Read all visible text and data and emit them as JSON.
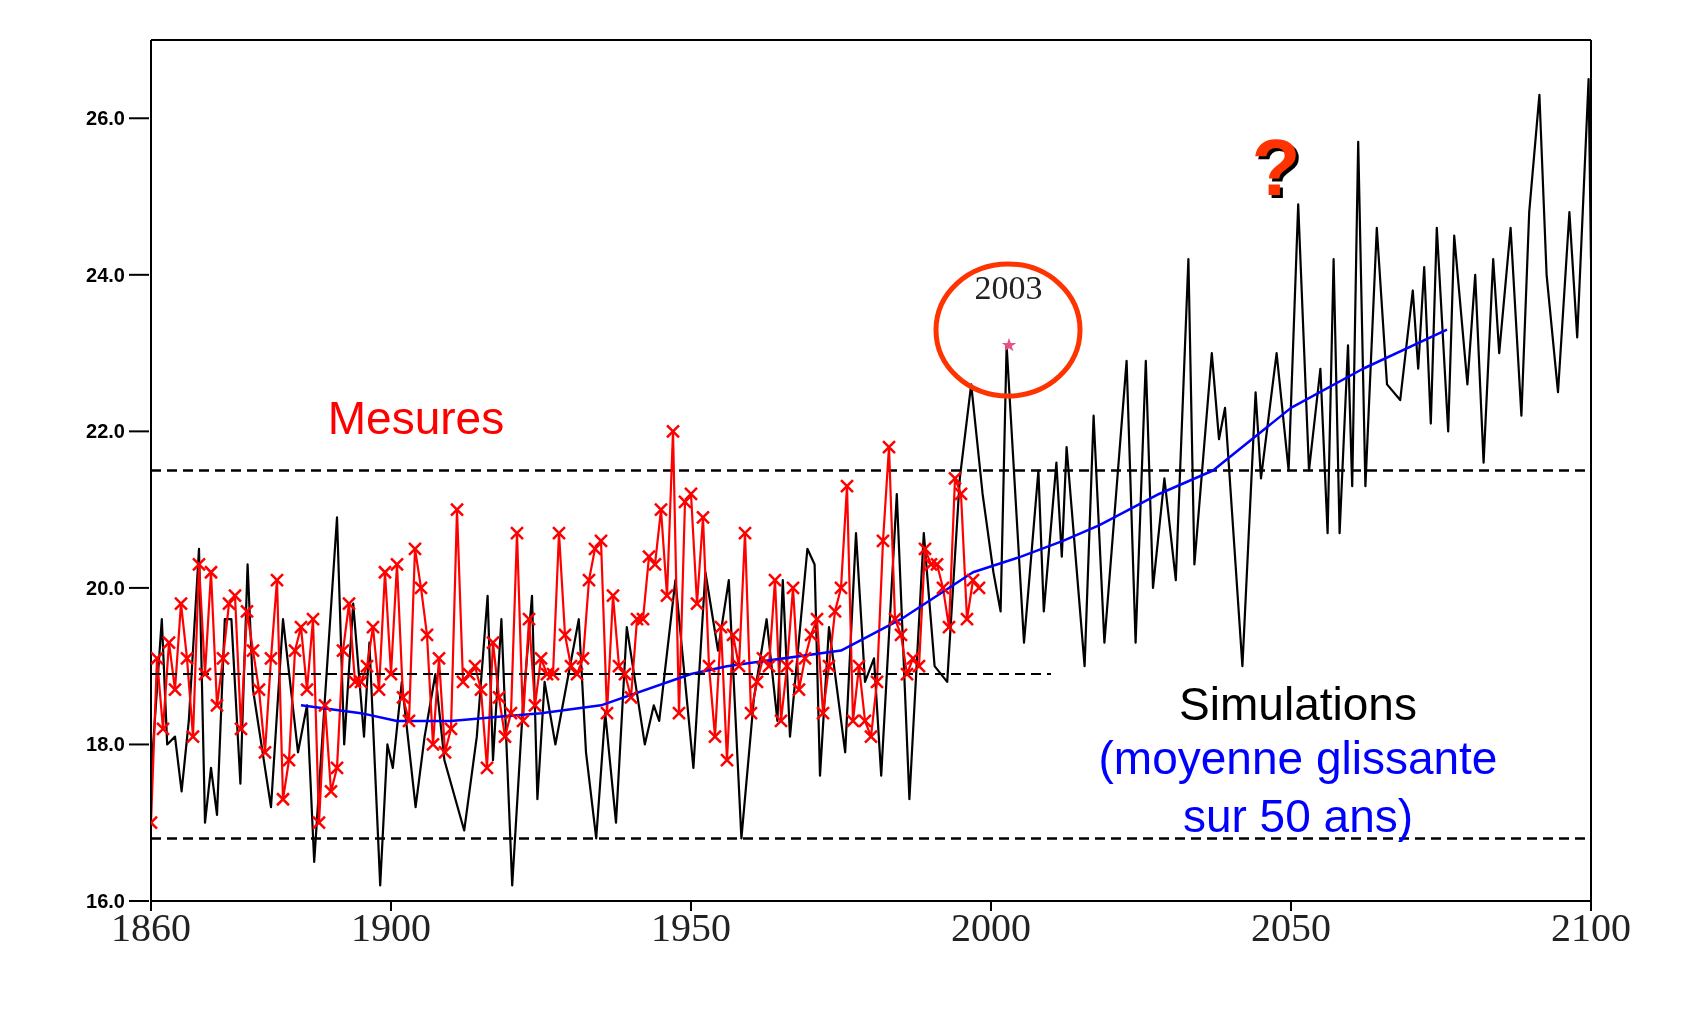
{
  "chart_data": {
    "type": "line",
    "xlim": [
      1860,
      2100
    ],
    "ylim": [
      16,
      27
    ],
    "xticks": [
      1860,
      1900,
      1950,
      2000,
      2050,
      2100
    ],
    "yticks": [
      {
        "value": 16,
        "label": "16.0"
      },
      {
        "value": 18,
        "label": "18.0"
      },
      {
        "value": 20,
        "label": "20.0"
      },
      {
        "value": 22,
        "label": "22.0"
      },
      {
        "value": 24,
        "label": "24.0"
      },
      {
        "value": 26,
        "label": "26.0"
      }
    ],
    "legend": false,
    "grid": false,
    "ref_lines": [
      {
        "axis": "y",
        "value": 21.5,
        "line_style": "dashed",
        "color": "#000000"
      },
      {
        "axis": "y",
        "value": 16.8,
        "line_style": "dashed",
        "color": "#000000"
      }
    ],
    "annotations": [
      {
        "text": "2003",
        "x": 2003,
        "y": 23.1
      },
      "?"
    ],
    "series": [
      {
        "name": "Simulations",
        "color": "#000000",
        "marker": "none",
        "line_style": "solid",
        "x": [
          1860,
          1861.8,
          1862.7,
          1864,
          1865.1,
          1866.3,
          1868,
          1869,
          1870,
          1871,
          1872.3,
          1873.4,
          1874.9,
          1876.1,
          1877,
          1880,
          1882,
          1884.5,
          1886,
          1887.2,
          1889,
          1891,
          1892.2,
          1893.7,
          1895.5,
          1896.4,
          1898.2,
          1899.4,
          1900.3,
          1901.8,
          1904.1,
          1905.6,
          1907.4,
          1908.9,
          1912.2,
          1914.3,
          1916.1,
          1917,
          1918.4,
          1920.2,
          1922,
          1923.5,
          1924.4,
          1925.6,
          1927.4,
          1931.3,
          1932.5,
          1934.2,
          1935.7,
          1937.5,
          1939.3,
          1942.3,
          1943.8,
          1944.7,
          1947.4,
          1950.4,
          1952.4,
          1954.5,
          1956.3,
          1958.4,
          1960.5,
          1962.6,
          1964.4,
          1965.3,
          1966.5,
          1969.4,
          1970.6,
          1971.5,
          1973,
          1975.7,
          1977.5,
          1979,
          1980.5,
          1981.7,
          1984.3,
          1986.4,
          1988.8,
          1990.6,
          1992.7,
          1994.8,
          1996.7,
          1998.6,
          2000.4,
          2001.6,
          2002.6,
          2005.5,
          2007.9,
          2008.8,
          2010.9,
          2011.8,
          2012.6,
          2015.6,
          2017.1,
          2018.9,
          2022.6,
          2024.1,
          2025.8,
          2027,
          2028.9,
          2030.8,
          2032.9,
          2033.9,
          2036.8,
          2038,
          2039,
          2041.9,
          2044.1,
          2045,
          2047.6,
          2049.6,
          2051.2,
          2053,
          2054.9,
          2056.1,
          2057.1,
          2058.1,
          2059.5,
          2060.2,
          2061.2,
          2062.4,
          2064.3,
          2066,
          2068.2,
          2070.3,
          2071.2,
          2072.2,
          2073.3,
          2074.3,
          2076.2,
          2077.2,
          2079.4,
          2080.7,
          2082.1,
          2083.7,
          2084.7,
          2086.6,
          2088.4,
          2089.7,
          2091.4,
          2092.6,
          2094.5,
          2096.4,
          2097.7,
          2099.6,
          2100
        ],
        "values": [
          17.6,
          19.6,
          18.0,
          18.1,
          17.4,
          18.3,
          20.5,
          17.0,
          17.7,
          17.1,
          19.6,
          19.6,
          17.5,
          20.3,
          18.7,
          17.2,
          19.6,
          17.9,
          18.5,
          16.5,
          18.6,
          20.9,
          18.0,
          19.8,
          18.1,
          19.3,
          16.2,
          18.0,
          17.7,
          18.8,
          17.2,
          18.1,
          18.9,
          17.8,
          16.9,
          18.1,
          19.9,
          17.8,
          19.6,
          16.2,
          18.5,
          19.9,
          17.3,
          18.8,
          18.0,
          19.6,
          17.9,
          16.8,
          18.4,
          17.0,
          19.5,
          18.0,
          18.5,
          18.3,
          20.1,
          17.7,
          20.2,
          19.2,
          20.1,
          16.8,
          18.6,
          19.6,
          18.3,
          20.1,
          18.1,
          20.5,
          20.3,
          17.6,
          19.5,
          17.9,
          20.7,
          18.8,
          19.1,
          17.6,
          21.2,
          17.3,
          20.7,
          19.0,
          18.8,
          21.4,
          22.6,
          21.2,
          20.2,
          19.7,
          23.1,
          19.3,
          21.5,
          19.7,
          21.6,
          20.4,
          21.8,
          19.0,
          22.2,
          19.3,
          22.9,
          19.3,
          22.9,
          20.0,
          21.4,
          20.1,
          24.2,
          20.3,
          23.0,
          21.9,
          22.3,
          19.0,
          22.5,
          21.4,
          23.0,
          21.5,
          24.9,
          21.5,
          22.8,
          20.7,
          24.2,
          20.7,
          23.1,
          21.3,
          25.7,
          21.3,
          24.6,
          22.6,
          22.4,
          23.8,
          22.8,
          24.1,
          22.1,
          24.6,
          22.0,
          24.5,
          22.6,
          24.0,
          21.6,
          24.2,
          23.0,
          24.6,
          22.2,
          24.8,
          26.3,
          24.0,
          22.5,
          24.8,
          23.2,
          26.5,
          24.2
        ]
      },
      {
        "name": "Mesures",
        "color": "#ff0000",
        "marker": "cross",
        "line_style": "solid",
        "x": [
          1860,
          1861,
          1862,
          1863,
          1864,
          1865,
          1866,
          1867,
          1868,
          1869,
          1870,
          1871,
          1872,
          1873,
          1874,
          1875,
          1876,
          1877,
          1878,
          1879,
          1880,
          1881,
          1882,
          1883,
          1884,
          1885,
          1886,
          1887,
          1888,
          1889,
          1890,
          1891,
          1892,
          1893,
          1894,
          1895,
          1896,
          1897,
          1898,
          1899,
          1900,
          1901,
          1902,
          1903,
          1904,
          1905,
          1906,
          1907,
          1908,
          1909,
          1910,
          1911,
          1912,
          1913,
          1914,
          1915,
          1916,
          1917,
          1918,
          1919,
          1920,
          1921,
          1922,
          1923,
          1924,
          1925,
          1926,
          1927,
          1928,
          1929,
          1930,
          1931,
          1932,
          1933,
          1934,
          1935,
          1936,
          1937,
          1938,
          1939,
          1940,
          1941,
          1942,
          1943,
          1944,
          1945,
          1946,
          1947,
          1948,
          1949,
          1950,
          1951,
          1952,
          1953,
          1954,
          1955,
          1956,
          1957,
          1958,
          1959,
          1960,
          1961,
          1962,
          1963,
          1964,
          1965,
          1966,
          1967,
          1968,
          1969,
          1970,
          1971,
          1972,
          1973,
          1974,
          1975,
          1976,
          1977,
          1978,
          1979,
          1980,
          1981,
          1982,
          1983,
          1984,
          1985,
          1986,
          1987,
          1988,
          1989,
          1990,
          1991,
          1992,
          1993,
          1994,
          1995,
          1996,
          1997,
          1998
        ],
        "values": [
          17.0,
          19.1,
          18.2,
          19.3,
          18.7,
          19.8,
          19.1,
          18.1,
          20.3,
          18.9,
          20.2,
          18.5,
          19.1,
          19.8,
          19.9,
          18.2,
          19.7,
          19.2,
          18.7,
          17.9,
          19.1,
          20.1,
          17.3,
          17.8,
          19.2,
          19.5,
          18.7,
          19.6,
          17.0,
          18.5,
          17.4,
          17.7,
          19.2,
          19.8,
          18.8,
          18.8,
          19.0,
          19.5,
          18.7,
          20.2,
          18.9,
          20.3,
          18.6,
          18.3,
          20.5,
          20.0,
          19.4,
          18.0,
          19.1,
          17.9,
          18.2,
          21.0,
          18.8,
          18.9,
          19.0,
          18.7,
          17.7,
          19.3,
          18.6,
          18.1,
          18.4,
          20.7,
          18.3,
          19.6,
          18.5,
          19.1,
          18.9,
          18.9,
          20.7,
          19.4,
          19.0,
          18.9,
          19.1,
          20.1,
          20.5,
          20.6,
          18.4,
          19.9,
          19.0,
          18.9,
          18.6,
          19.6,
          19.6,
          20.4,
          20.3,
          21.0,
          19.9,
          22.0,
          18.4,
          21.1,
          21.2,
          19.8,
          20.9,
          19.0,
          18.1,
          19.5,
          17.8,
          19.4,
          19.0,
          20.7,
          18.4,
          18.8,
          19.1,
          19.0,
          20.1,
          18.3,
          19.0,
          20.0,
          18.7,
          19.1,
          19.4,
          19.6,
          18.4,
          19.0,
          19.7,
          20.0,
          21.3,
          18.3,
          19.0,
          18.3,
          18.1,
          18.8,
          20.6,
          21.8,
          19.6,
          19.4,
          18.9,
          19.1,
          19.0,
          20.5,
          20.3,
          20.3,
          20.0,
          19.5,
          21.4,
          21.2,
          19.6,
          20.1,
          20.0
        ]
      },
      {
        "name": "(moyenne glissante sur 50 ans)",
        "color": "#0000ff",
        "marker": "none",
        "line_style": "solid",
        "x": [
          1885,
          1895,
          1901,
          1910,
          1925,
          1935,
          1950,
          1956,
          1975,
          1985,
          1997,
          2005,
          2012,
          2018,
          2028,
          2037,
          2050,
          2062,
          2076
        ],
        "values": [
          18.5,
          18.4,
          18.3,
          18.3,
          18.4,
          18.5,
          18.9,
          19.0,
          19.2,
          19.6,
          20.2,
          20.4,
          20.6,
          20.8,
          21.2,
          21.5,
          22.3,
          22.8,
          23.3
        ]
      },
      {
        "color": "#000000",
        "marker": "none",
        "line_style": "dashed",
        "x": [
          1860,
          2010
        ],
        "values": [
          18.9,
          18.9
        ]
      },
      {
        "type": "scatter",
        "color": "#e8508a",
        "marker": "star",
        "x": [
          2003
        ],
        "values": [
          23.1
        ]
      }
    ]
  }
}
